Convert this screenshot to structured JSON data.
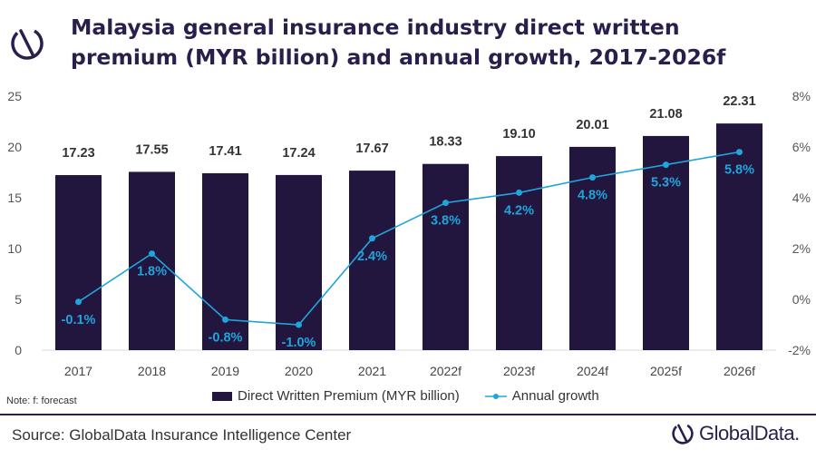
{
  "title": "Malaysia general insurance industry direct written premium (MYR billion) and annual growth, 2017-2026f",
  "note": "Note: f: forecast",
  "source": "Source: GlobalData Insurance Intelligence Center",
  "brand": "GlobalData.",
  "colors": {
    "bar": "#22163f",
    "line": "#1fa5dc",
    "title": "#2a1e4a"
  },
  "chart_data": {
    "type": "bar",
    "categories": [
      "2017",
      "2018",
      "2019",
      "2020",
      "2021",
      "2022f",
      "2023f",
      "2024f",
      "2025f",
      "2026f"
    ],
    "series": [
      {
        "name": "Direct Written Premium (MYR billion)",
        "type": "bar",
        "axis": "left",
        "values": [
          17.23,
          17.55,
          17.41,
          17.24,
          17.67,
          18.33,
          19.1,
          20.01,
          21.08,
          22.31
        ],
        "labels": [
          "17.23",
          "17.55",
          "17.41",
          "17.24",
          "17.67",
          "18.33",
          "19.10",
          "20.01",
          "21.08",
          "22.31"
        ]
      },
      {
        "name": "Annual growth",
        "type": "line",
        "axis": "right",
        "values": [
          -0.1,
          1.8,
          -0.8,
          -1.0,
          2.4,
          3.8,
          4.2,
          4.8,
          5.3,
          5.8
        ],
        "labels": [
          "-0.1%",
          "1.8%",
          "-0.8%",
          "-1.0%",
          "2.4%",
          "3.8%",
          "4.2%",
          "4.8%",
          "5.3%",
          "5.8%"
        ]
      }
    ],
    "ylim": [
      0,
      25
    ],
    "yticks": [
      "0",
      "5",
      "10",
      "15",
      "20",
      "25"
    ],
    "y2lim": [
      -2,
      8
    ],
    "y2ticks": [
      "-2%",
      "0%",
      "2%",
      "4%",
      "6%",
      "8%"
    ],
    "grid": false,
    "legend": "bottom"
  }
}
